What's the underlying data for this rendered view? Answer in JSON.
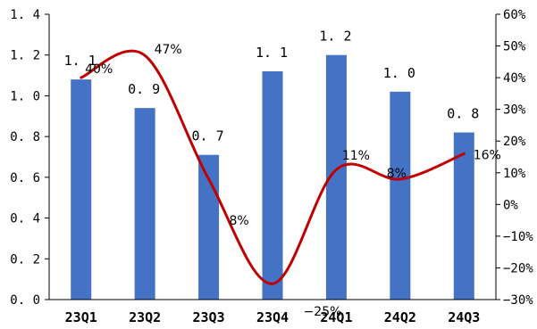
{
  "chart_data": {
    "type": "bar+line",
    "categories": [
      "23Q1",
      "23Q2",
      "23Q3",
      "23Q4",
      "24Q1",
      "24Q2",
      "24Q3"
    ],
    "bar_series": {
      "values": [
        1.08,
        0.94,
        0.71,
        1.12,
        1.2,
        1.02,
        0.82
      ],
      "labels": [
        "1. 1",
        "0. 9",
        "0. 7",
        "1. 1",
        "1. 2",
        "1. 0",
        "0. 8"
      ],
      "color": "#4472c4"
    },
    "line_series": {
      "values": [
        40,
        47,
        8,
        -25,
        11,
        8,
        16
      ],
      "labels": [
        "40%",
        "47%",
        "8%",
        "−25%",
        "11%",
        "8%",
        "16%"
      ],
      "color": "#c00000",
      "smooth": true
    },
    "y_left": {
      "lim": [
        0,
        1.4
      ],
      "ticks": [
        "0. 0",
        "0. 2",
        "0. 4",
        "0. 6",
        "0. 8",
        "1. 0",
        "1. 2",
        "1. 4"
      ]
    },
    "y_right": {
      "lim": [
        -30,
        60
      ],
      "ticks": [
        "−30%",
        "−20%",
        "−10%",
        "0%",
        "10%",
        "20%",
        "30%",
        "40%",
        "50%",
        "60%"
      ]
    },
    "grid": false,
    "legend": "none"
  }
}
